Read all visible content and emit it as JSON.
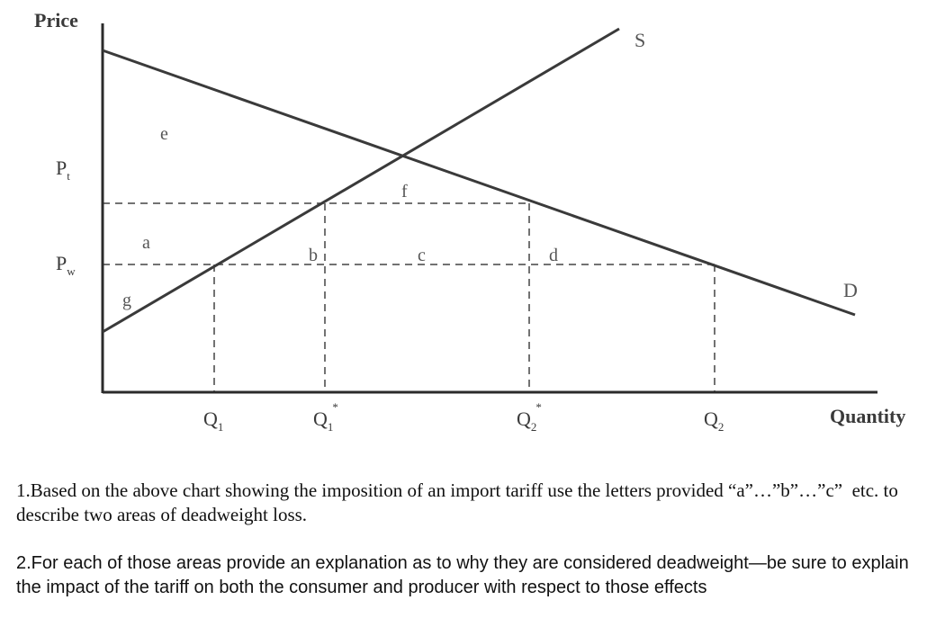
{
  "diagram": {
    "y_axis_title": "Price",
    "x_axis_title": "Quantity",
    "price_levels": [
      {
        "id": "pt",
        "label": "P",
        "sub": "t"
      },
      {
        "id": "pw",
        "label": "P",
        "sub": "w"
      }
    ],
    "quantity_levels": [
      {
        "id": "q1",
        "label": "Q",
        "sub": "1",
        "star": false
      },
      {
        "id": "q1s",
        "label": "Q",
        "sub": "1",
        "star": true
      },
      {
        "id": "q2s",
        "label": "Q",
        "sub": "2",
        "star": true
      },
      {
        "id": "q2",
        "label": "Q",
        "sub": "2",
        "star": false
      }
    ],
    "curves": {
      "supply": "S",
      "demand": "D"
    },
    "areas": [
      "e",
      "f",
      "a",
      "b",
      "c",
      "d",
      "g"
    ],
    "star_symbol": "*"
  },
  "questions": {
    "q1": "1.Based on the above chart showing the imposition of an import tariff use the letters provided “a”…”b”…”c”  etc. to describe two areas of deadweight loss.",
    "q2": "2.For each of those areas provide an explanation as to why they are considered deadweight—be sure to explain the impact of the tariff on both the consumer and producer with respect to those effects"
  }
}
